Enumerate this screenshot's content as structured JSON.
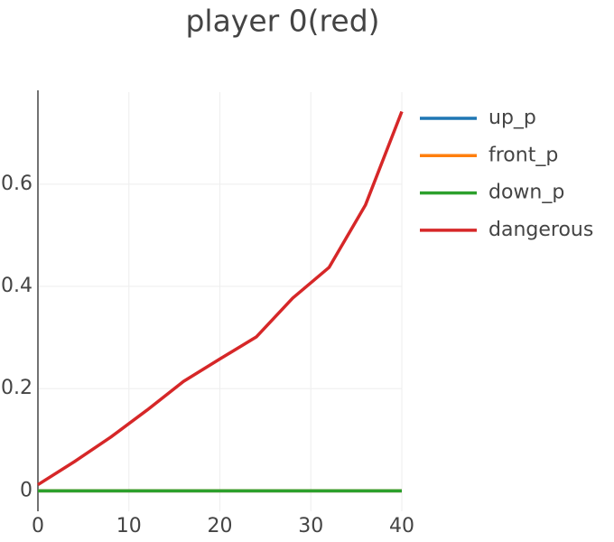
{
  "chart_data": {
    "type": "line",
    "title": "player 0(red)",
    "x": [
      0,
      4,
      8,
      12,
      16,
      20,
      24,
      28,
      32,
      36,
      40
    ],
    "series": [
      {
        "name": "up_p",
        "color": "#1f77b4",
        "values": [
          0,
          0,
          0,
          0,
          0,
          0,
          0,
          0,
          0,
          0,
          0
        ]
      },
      {
        "name": "front_p",
        "color": "#ff7f0e",
        "values": [
          0,
          0,
          0,
          0,
          0,
          0,
          0,
          0,
          0,
          0,
          0
        ]
      },
      {
        "name": "down_p",
        "color": "#2ca02c",
        "values": [
          0,
          0,
          0,
          0,
          0,
          0,
          0,
          0,
          0,
          0,
          0
        ]
      },
      {
        "name": "dangerous",
        "color": "#d62728",
        "values": [
          0.012,
          0.057,
          0.105,
          0.158,
          0.214,
          0.258,
          0.301,
          0.377,
          0.437,
          0.559,
          0.742
        ]
      }
    ],
    "xlim": [
      0,
      40
    ],
    "xticks": [
      0,
      10,
      20,
      30,
      40
    ],
    "ylim": [
      -0.04,
      0.78
    ],
    "yticks": [
      0,
      0.2,
      0.4,
      0.6
    ],
    "grid": true,
    "legend": "right"
  }
}
